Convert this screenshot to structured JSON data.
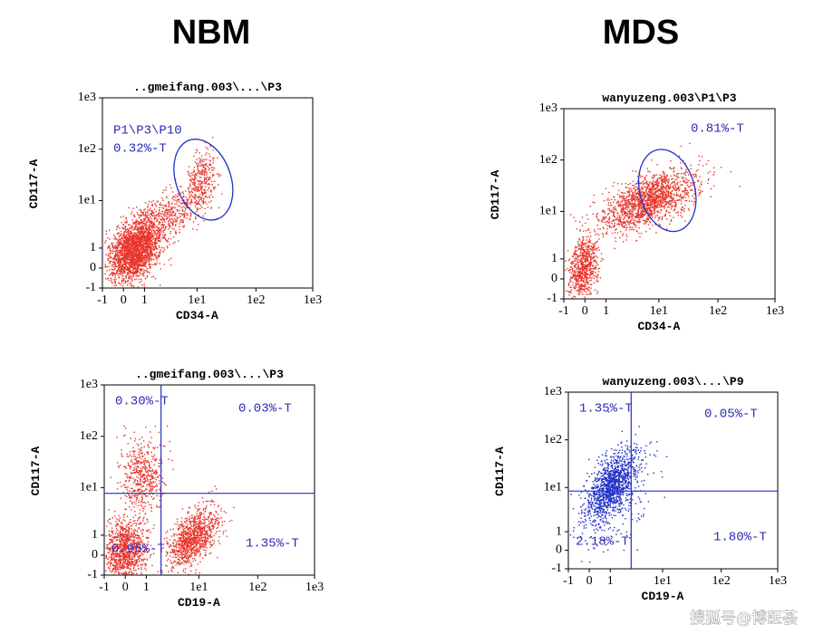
{
  "columns": [
    {
      "title": "NBM"
    },
    {
      "title": "MDS"
    }
  ],
  "panels": [
    {
      "title": "..gmeifang.003\\...\\P3",
      "labels": [
        "P1\\P3\\P10",
        "0.32%-T"
      ],
      "xlabel": "CD34-A",
      "ylabel": "CD117-A",
      "xticks": [
        "-1",
        "0",
        "1",
        "1e1",
        "1e2",
        "1e3"
      ],
      "yticks": [
        "-1",
        "0",
        "1",
        "1e1",
        "1e2",
        "1e3"
      ]
    },
    {
      "title": "wanyuzeng.003\\P1\\P3",
      "labels": [
        "0.81%-T"
      ],
      "xlabel": "CD34-A",
      "ylabel": "CD117-A",
      "xticks": [
        "-1",
        "0",
        "1",
        "1e1",
        "1e2",
        "1e3"
      ],
      "yticks": [
        "-1",
        "0",
        "1",
        "1e1",
        "1e2",
        "1e3"
      ]
    },
    {
      "title": "..gmeifang.003\\...\\P3",
      "labels": [
        "0.30%-T",
        "0.03%-T",
        "0.96%-T",
        "1.35%-T"
      ],
      "xlabel": "CD19-A",
      "ylabel": "CD117-A",
      "xticks": [
        "-1",
        "0",
        "1",
        "1e1",
        "1e2",
        "1e3"
      ],
      "yticks": [
        "-1",
        "0",
        "1",
        "1e1",
        "1e2",
        "1e3"
      ]
    },
    {
      "title": "wanyuzeng.003\\...\\P9",
      "labels": [
        "1.35%-T",
        "0.05%-T",
        "2.18%-T",
        "1.80%-T"
      ],
      "xlabel": "CD19-A",
      "ylabel": "CD117-A",
      "xticks": [
        "-1",
        "0",
        "1",
        "1e1",
        "1e2",
        "1e3"
      ],
      "yticks": [
        "-1",
        "0",
        "1",
        "1e1",
        "1e2",
        "1e3"
      ]
    }
  ],
  "watermark": "搜狐号@博医荟"
}
